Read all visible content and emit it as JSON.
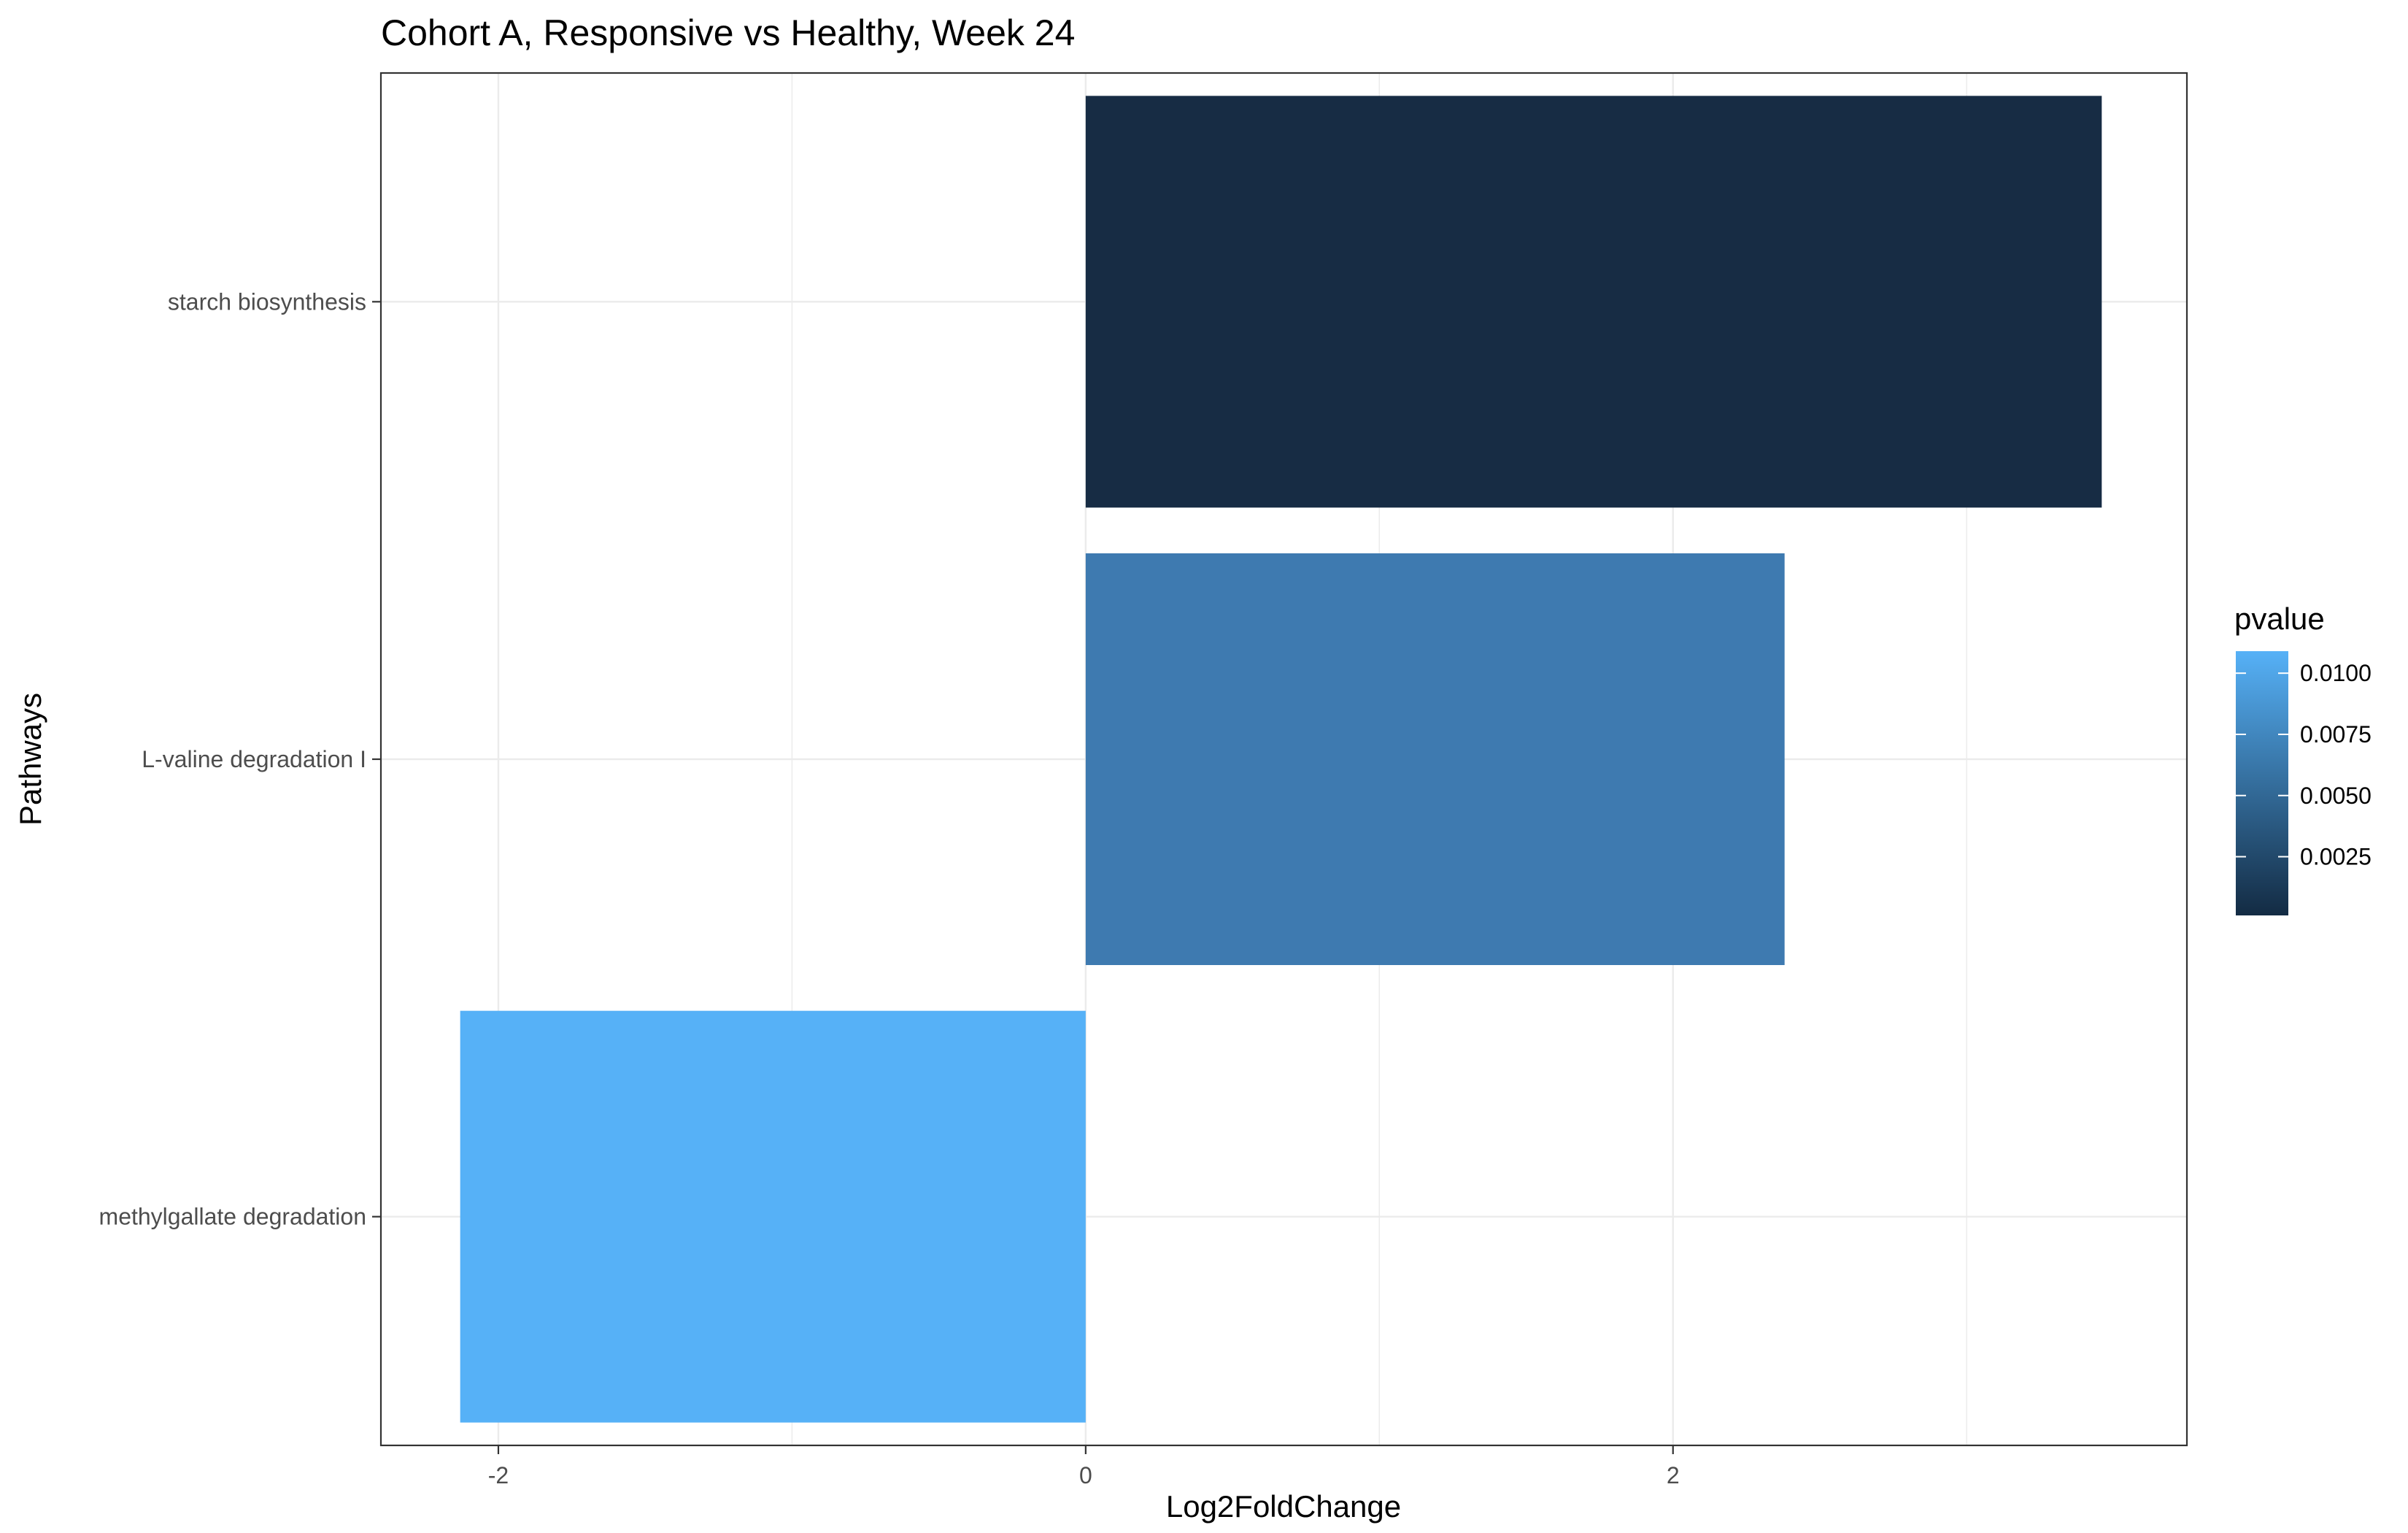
{
  "chart_data": {
    "type": "bar",
    "orientation": "horizontal",
    "title": "Cohort A, Responsive vs Healthy, Week 24",
    "xlabel": "Log2FoldChange",
    "ylabel": "Pathways",
    "categories": [
      "starch biosynthesis",
      "L-valine degradation I",
      "methylgallate degradation"
    ],
    "values": [
      3.46,
      2.38,
      -2.13
    ],
    "pvalues": [
      0.0001,
      0.0068,
      0.0109
    ],
    "bar_colors": [
      "#172c44",
      "#3e7ab0",
      "#56b1f7"
    ],
    "xlim": [
      -2.4,
      3.75
    ],
    "xticks": [
      -2,
      0,
      2
    ],
    "xtick_labels": [
      "-2",
      "0",
      "2"
    ],
    "grid": true,
    "legend": {
      "title": "pvalue",
      "position": "right",
      "low_color": "#132b43",
      "high_color": "#56b1f7",
      "range": [
        0.0001,
        0.0109
      ],
      "ticks": [
        0.0025,
        0.005,
        0.0075,
        0.01
      ],
      "tick_labels": [
        "0.0025",
        "0.0050",
        "0.0075",
        "0.0100"
      ]
    }
  }
}
